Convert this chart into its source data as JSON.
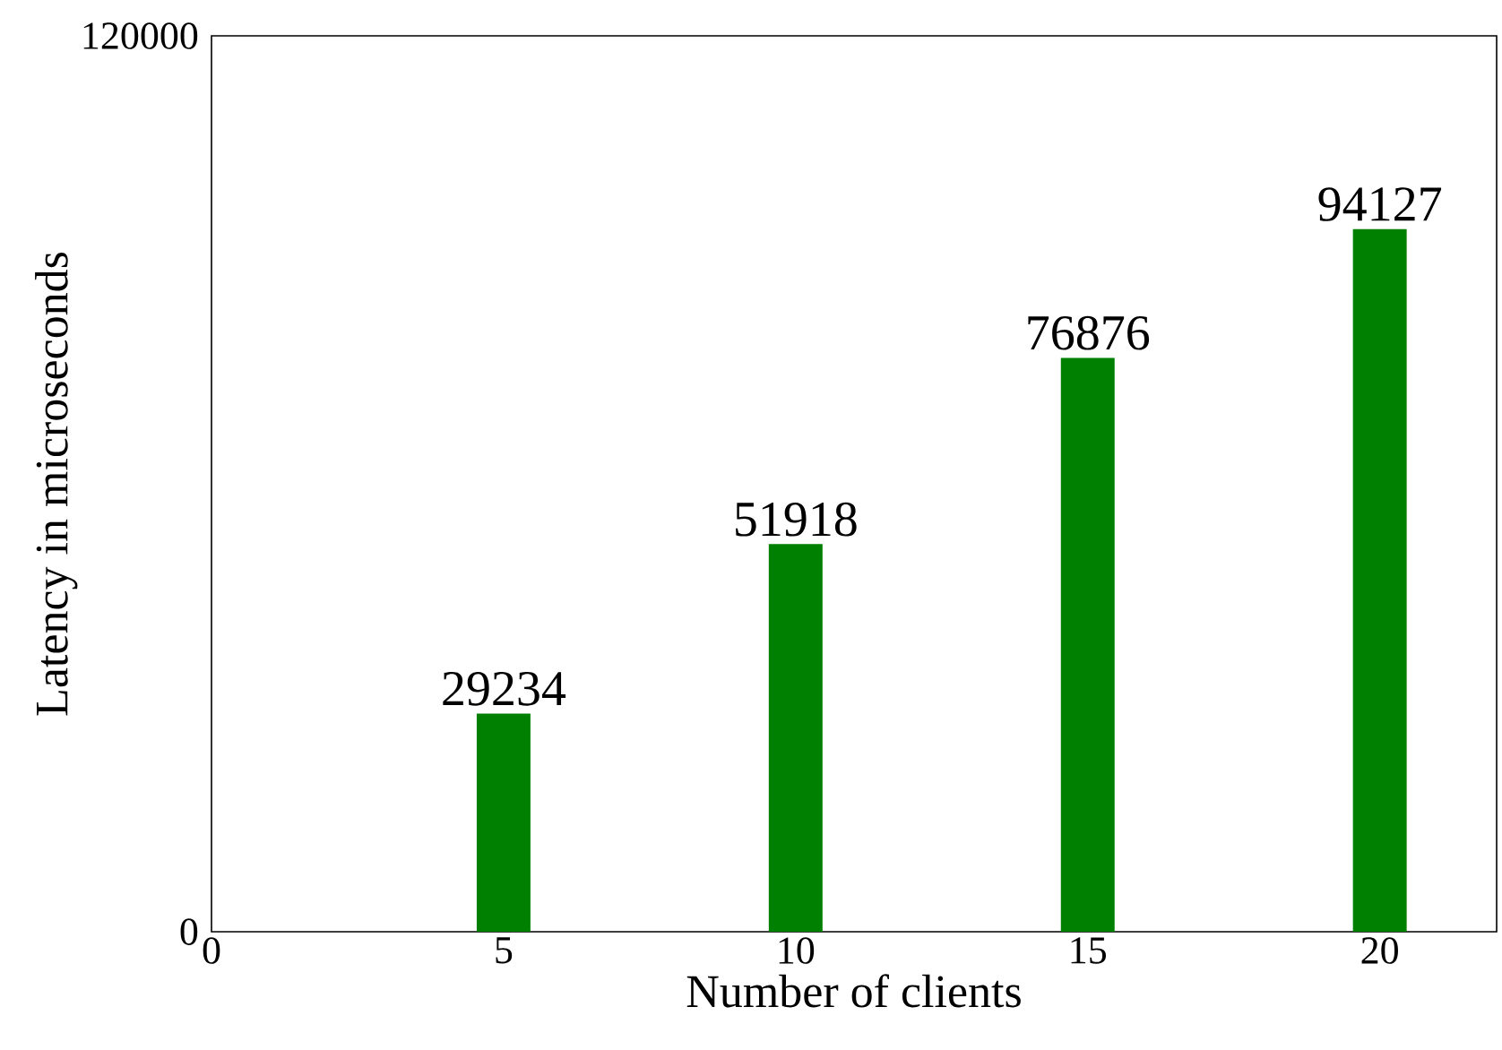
{
  "chart_data": {
    "type": "bar",
    "xlabel": "Number of clients",
    "ylabel": "Latency in microseconds",
    "x": [
      5,
      10,
      15,
      20
    ],
    "values": [
      29234,
      51918,
      76876,
      94127
    ],
    "color": "#008000",
    "xlim": [
      0,
      22
    ],
    "xticks": [
      0,
      5,
      10,
      15,
      20
    ],
    "ylim": [
      0,
      120000
    ],
    "yticks": [
      0,
      120000
    ],
    "data_labels": true
  }
}
